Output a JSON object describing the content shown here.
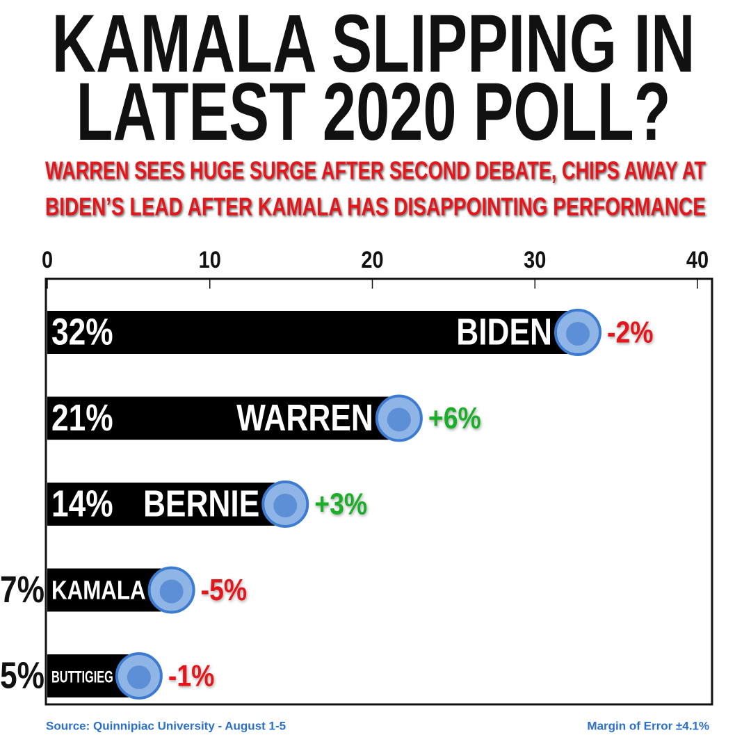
{
  "chart_data": {
    "type": "bar",
    "orientation": "horizontal",
    "title": [
      "KAMALA SLIPPING IN",
      "LATEST 2020 POLL?"
    ],
    "subtitle": [
      "WARREN SEES HUGE SURGE AFTER SECOND DEBATE, CHIPS AWAY AT",
      "BIDEN’S LEAD AFTER KAMALA HAS DISAPPOINTING PERFORMANCE"
    ],
    "categories": [
      "BIDEN",
      "WARREN",
      "BERNIE",
      "KAMALA",
      "BUTTIGIEG"
    ],
    "values": [
      32,
      21,
      14,
      7,
      5
    ],
    "value_labels": [
      "32%",
      "21%",
      "14%",
      "7%",
      "5%"
    ],
    "changes": [
      -2,
      6,
      3,
      -5,
      -1
    ],
    "change_labels": [
      "-2%",
      "+6%",
      "+3%",
      "-5%",
      "-1%"
    ],
    "color": "#000000",
    "xlim": [
      0,
      40
    ],
    "xticks": [
      0,
      10,
      20,
      30,
      40
    ],
    "source": "Source: Quinnipiac University - August 1-5",
    "note": "Margin of Error ±4.1%"
  }
}
